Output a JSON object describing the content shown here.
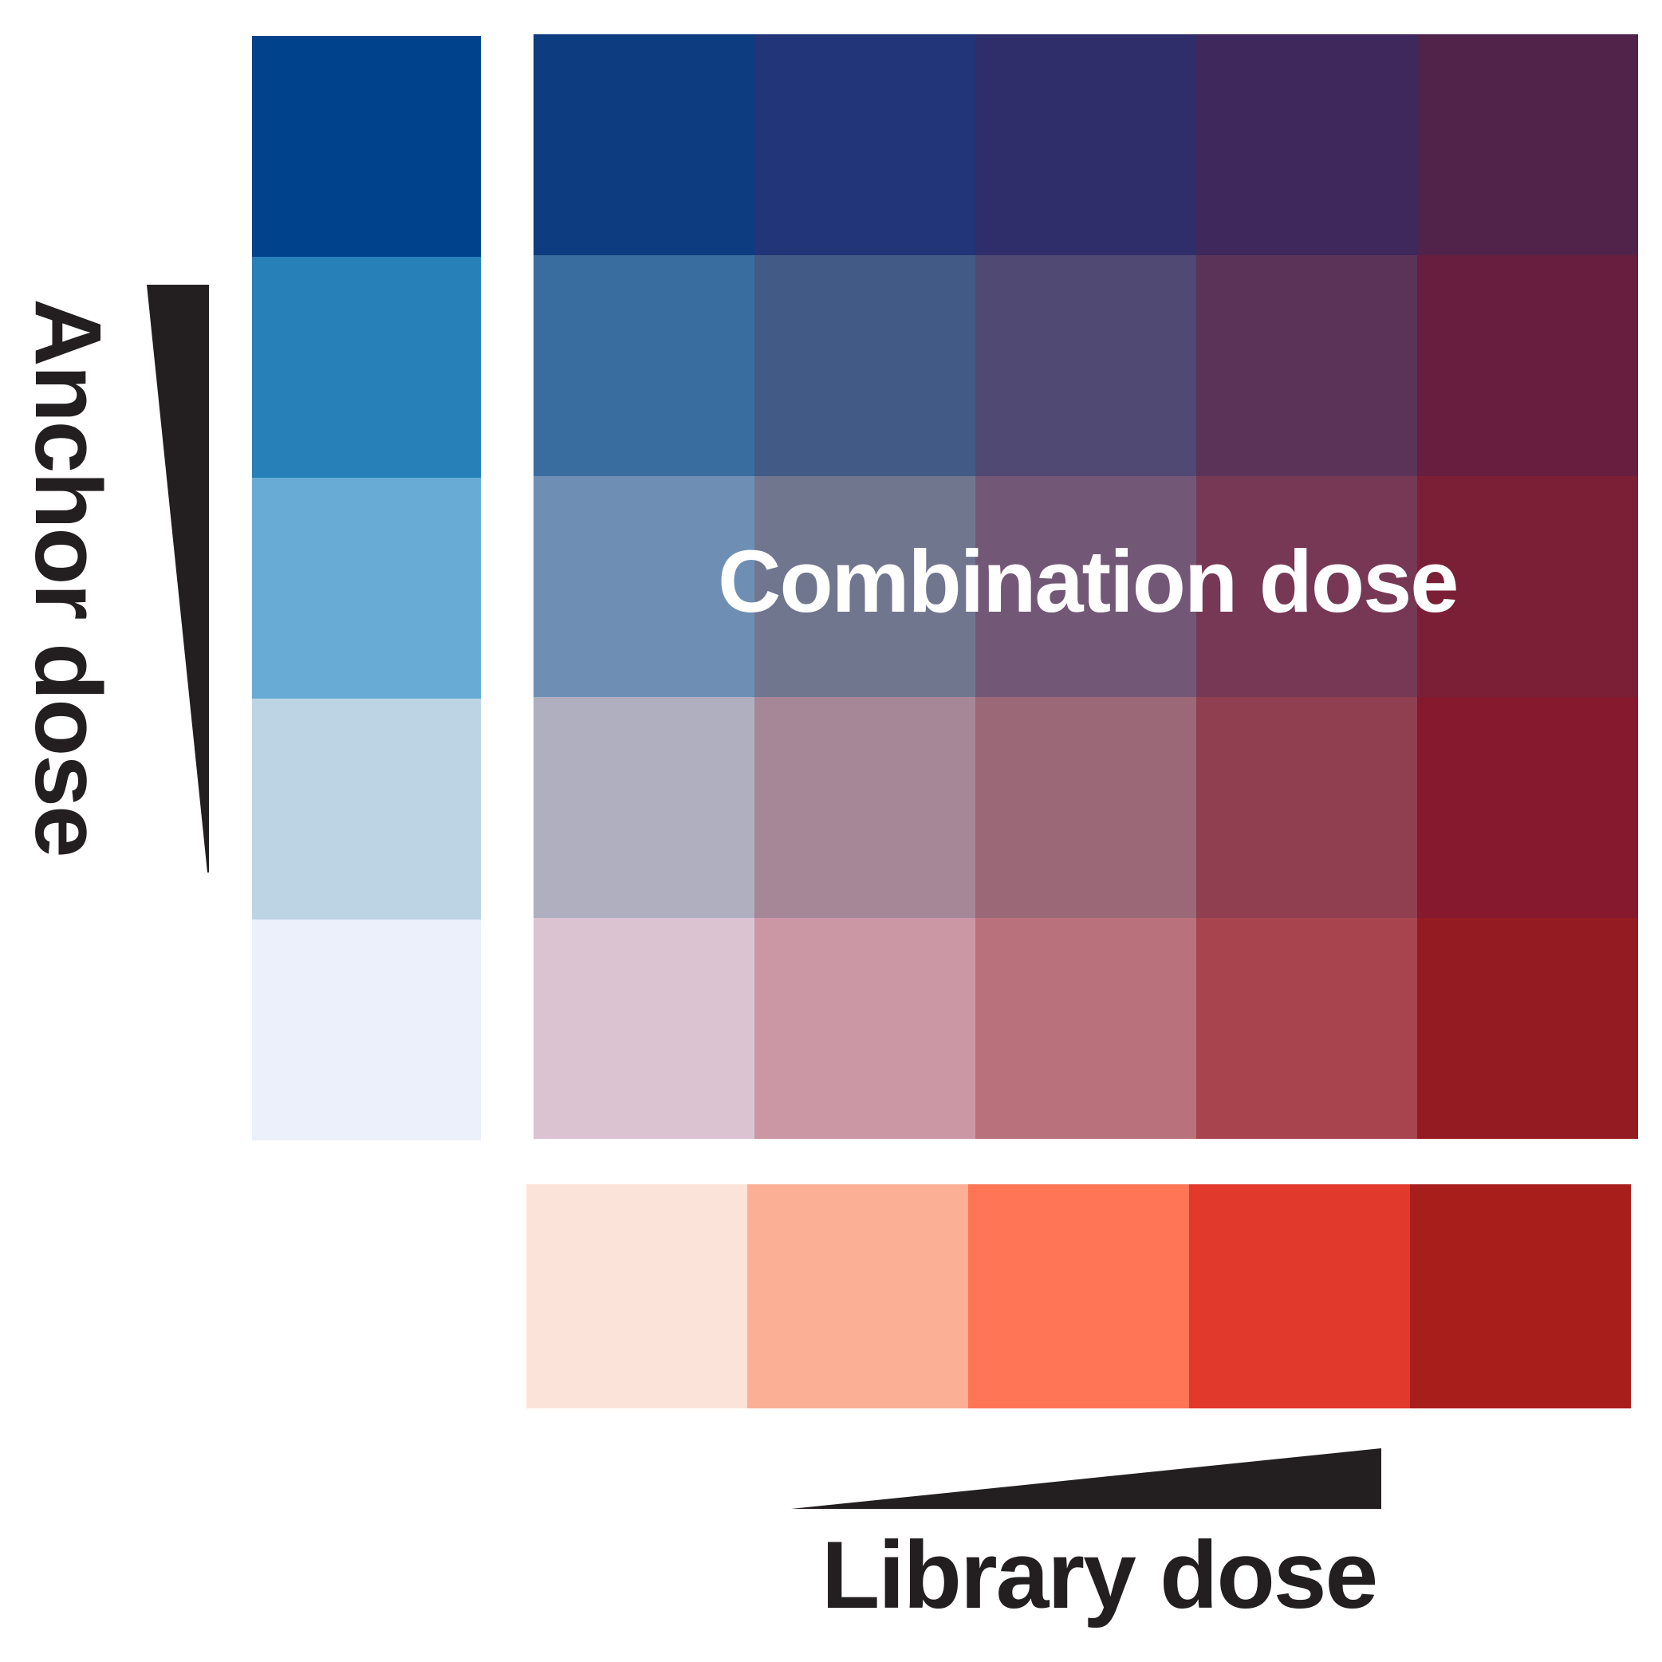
{
  "labels": {
    "anchor": "Anchor dose",
    "combination": "Combination dose",
    "library": "Library dose"
  },
  "colors": {
    "anchor_scale": [
      "#00428b",
      "#2880b8",
      "#68acd5",
      "#bcd4e4",
      "#ebf0fb"
    ],
    "library_scale": [
      "#fce3d9",
      "#fbb096",
      "#ff7555",
      "#e13a2c",
      "#a71e1a"
    ],
    "combination_grid": [
      [
        "#0e3c80",
        "#213578",
        "#302e6a",
        "#3e285c",
        "#51234a"
      ],
      [
        "#396d9f",
        "#425b86",
        "#4f4973",
        "#5b3359",
        "#681e3e"
      ],
      [
        "#6e8fb3",
        "#71768f",
        "#725876",
        "#763855",
        "#7a1f35"
      ],
      [
        "#b0afbf",
        "#a68798",
        "#9a6876",
        "#8f3f50",
        "#86192e"
      ],
      [
        "#dcc3d1",
        "#cc97a4",
        "#b9727c",
        "#a8444d",
        "#951b22"
      ]
    ],
    "text_dark": "#231f20",
    "text_light": "#ffffff"
  }
}
